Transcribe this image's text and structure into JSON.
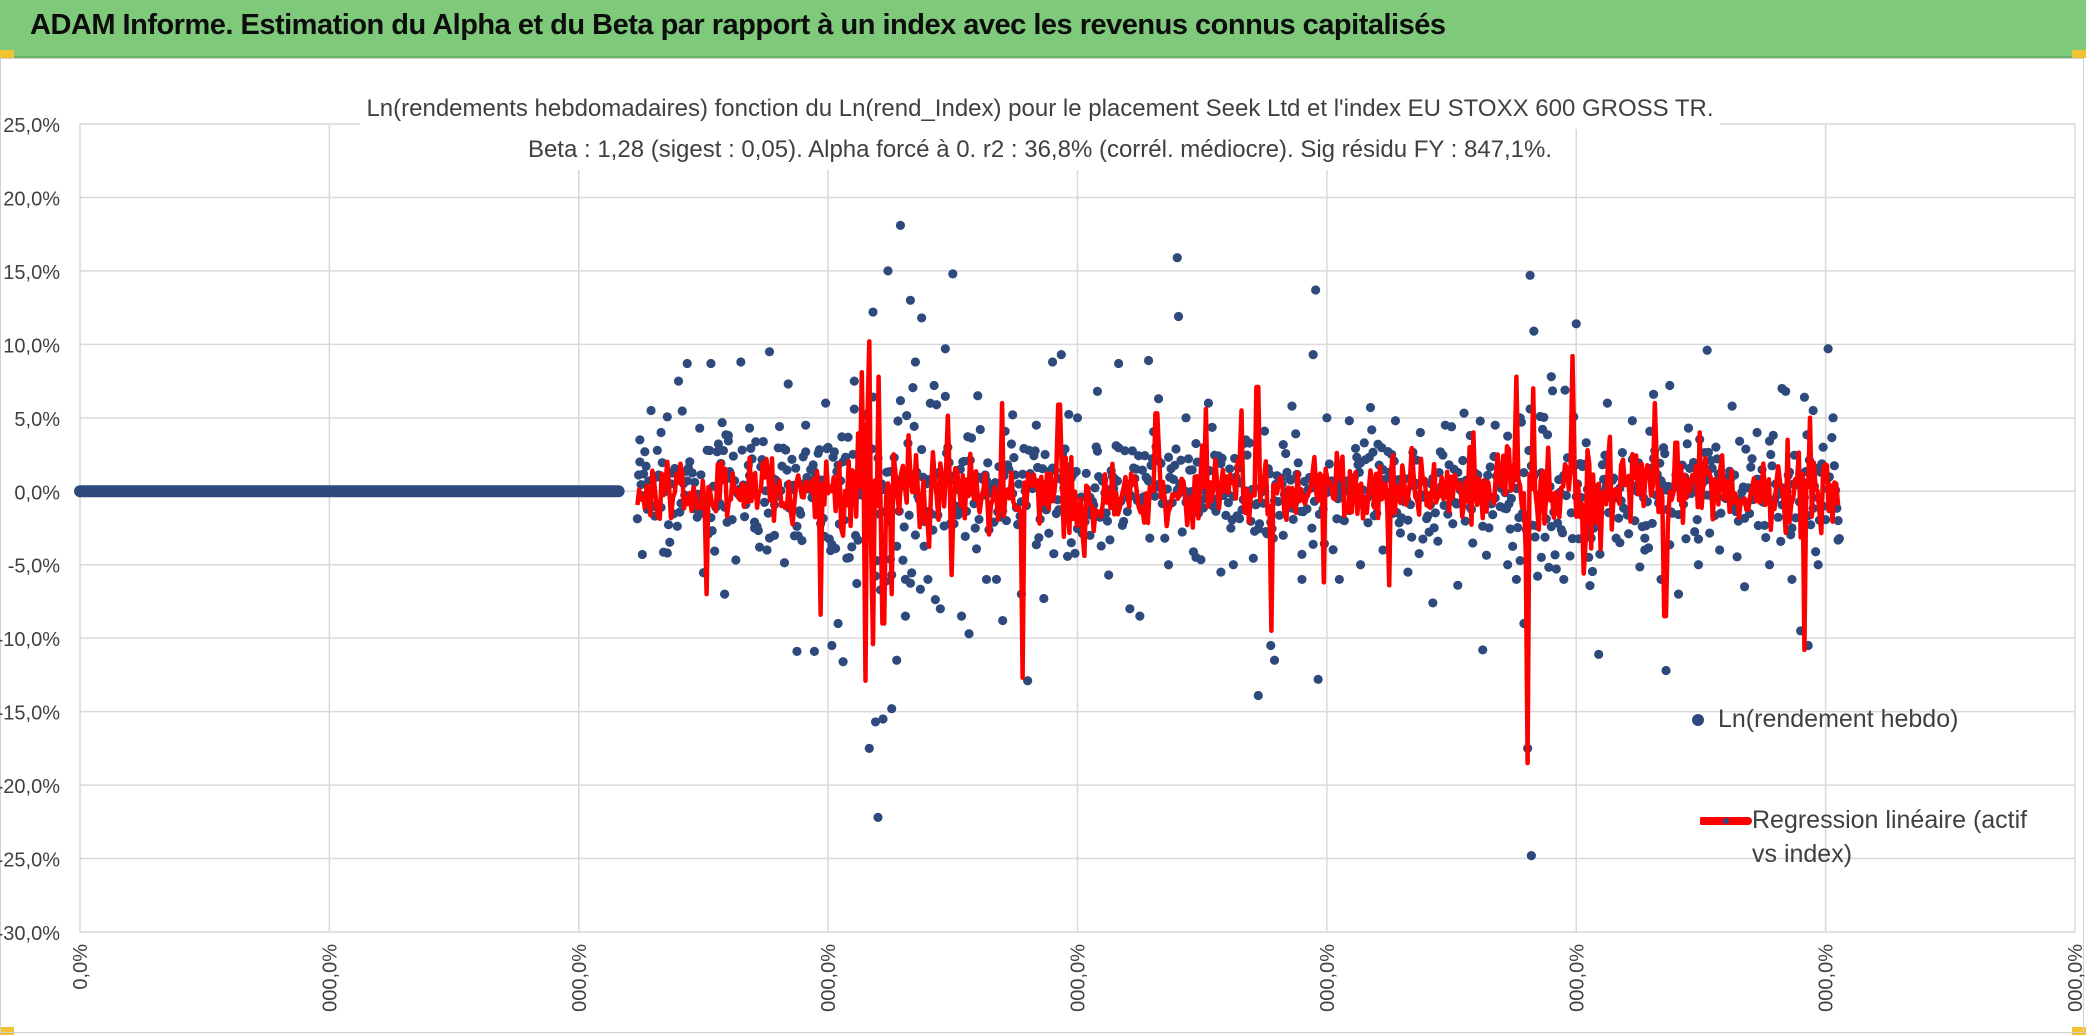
{
  "header": {
    "title": "ADAM Informe. Estimation du Alpha et du Beta par rapport à un index avec les revenus connus capitalisés"
  },
  "colors": {
    "banner": "#7ec97a",
    "points": "#2e4a7d",
    "regression": "#ff0000",
    "grid": "#d9d9d9",
    "text": "#404040"
  },
  "chart_data": {
    "type": "scatter",
    "title_line1": "Ln(rendements hebdomadaires) fonction du Ln(rend_Index) pour le placement Seek Ltd et l'index EU STOXX 600 GROSS TR.",
    "title_line2": "Beta : 1,28 (sigest : 0,05). Alpha forcé à 0. r2 : 36,8% (corrél. médiocre). Sig résidu FY : 847,1%.",
    "ylim": [
      -30,
      25
    ],
    "y_ticks": [
      "25,0%",
      "20,0%",
      "15,0%",
      "10,0%",
      "5,0%",
      "0,0%",
      "-5,0%",
      "-10,0%",
      "-15,0%",
      "-20,0%",
      "-25,0%",
      "-30,0%"
    ],
    "x_ticks": [
      "0,0%",
      "000,0%",
      "000,0%",
      "000,0%",
      "000,0%",
      "000,0%",
      "000,0%",
      "000,0%",
      "000,0%"
    ],
    "x_range": [
      0,
      1600
    ],
    "grid": true,
    "legend_position": "right",
    "series": [
      {
        "name": "Ln(rendement hebdo)",
        "kind": "scatter",
        "zero_segment": [
          0,
          432
        ],
        "points": [
          [
            449,
            3.5
          ],
          [
            451,
            -4.3
          ],
          [
            458,
            5.5
          ],
          [
            466,
            4.0
          ],
          [
            471,
            -4.2
          ],
          [
            480,
            7.5
          ],
          [
            487,
            8.7
          ],
          [
            500,
            -1.5
          ],
          [
            506,
            8.7
          ],
          [
            517,
            -7.0
          ],
          [
            520,
            3.8
          ],
          [
            530,
            8.8
          ],
          [
            537,
            4.3
          ],
          [
            541,
            -2.5
          ],
          [
            553,
            9.5
          ],
          [
            557,
            -3.0
          ],
          [
            568,
            7.3
          ],
          [
            575,
            -10.9
          ],
          [
            582,
            4.5
          ],
          [
            589,
            -10.9
          ],
          [
            598,
            6.0
          ],
          [
            603,
            -10.5
          ],
          [
            608,
            -9.0
          ],
          [
            612,
            -11.6
          ],
          [
            621,
            7.5
          ],
          [
            633,
            -17.5
          ],
          [
            636,
            12.2
          ],
          [
            638,
            -15.7
          ],
          [
            640,
            -22.2
          ],
          [
            644,
            -15.5
          ],
          [
            648,
            15.0
          ],
          [
            651,
            -14.8
          ],
          [
            655,
            -11.5
          ],
          [
            658,
            18.1
          ],
          [
            662,
            -8.5
          ],
          [
            666,
            13.0
          ],
          [
            670,
            8.8
          ],
          [
            675,
            11.8
          ],
          [
            680,
            -6.0
          ],
          [
            685,
            7.2
          ],
          [
            690,
            -8.0
          ],
          [
            694,
            9.7
          ],
          [
            700,
            14.8
          ],
          [
            707,
            -8.5
          ],
          [
            713,
            -9.7
          ],
          [
            720,
            6.5
          ],
          [
            727,
            -6.0
          ],
          [
            735,
            -6.0
          ],
          [
            740,
            -8.8
          ],
          [
            748,
            5.2
          ],
          [
            755,
            -7.0
          ],
          [
            760,
            -12.9
          ],
          [
            767,
            4.5
          ],
          [
            773,
            -7.3
          ],
          [
            780,
            8.8
          ],
          [
            787,
            9.3
          ],
          [
            795,
            -3.5
          ],
          [
            800,
            5.0
          ],
          [
            810,
            -3.0
          ],
          [
            816,
            6.8
          ],
          [
            825,
            -5.7
          ],
          [
            833,
            8.7
          ],
          [
            842,
            -8.0
          ],
          [
            850,
            -8.5
          ],
          [
            857,
            8.9
          ],
          [
            865,
            6.3
          ],
          [
            873,
            -5.0
          ],
          [
            880,
            15.9
          ],
          [
            881,
            11.9
          ],
          [
            887,
            5.0
          ],
          [
            895,
            -4.5
          ],
          [
            905,
            6.0
          ],
          [
            915,
            -5.5
          ],
          [
            925,
            -5.0
          ],
          [
            935,
            3.5
          ],
          [
            945,
            -13.9
          ],
          [
            955,
            -10.5
          ],
          [
            958,
            -11.5
          ],
          [
            965,
            -3.0
          ],
          [
            972,
            5.8
          ],
          [
            980,
            -6.0
          ],
          [
            989,
            9.3
          ],
          [
            991,
            13.7
          ],
          [
            993,
            -12.8
          ],
          [
            1000,
            5.0
          ],
          [
            1010,
            -6.0
          ],
          [
            1018,
            4.8
          ],
          [
            1027,
            -5.0
          ],
          [
            1035,
            5.7
          ],
          [
            1045,
            -4.0
          ],
          [
            1055,
            4.8
          ],
          [
            1065,
            -5.5
          ],
          [
            1075,
            4.0
          ],
          [
            1085,
            -7.6
          ],
          [
            1095,
            4.5
          ],
          [
            1105,
            -6.4
          ],
          [
            1115,
            3.8
          ],
          [
            1125,
            -10.8
          ],
          [
            1135,
            4.5
          ],
          [
            1145,
            -5.0
          ],
          [
            1152,
            -6.0
          ],
          [
            1155,
            5.0
          ],
          [
            1158,
            -9.0
          ],
          [
            1161,
            -17.5
          ],
          [
            1163,
            14.7
          ],
          [
            1164,
            -24.8
          ],
          [
            1166,
            10.9
          ],
          [
            1172,
            -4.5
          ],
          [
            1180,
            7.8
          ],
          [
            1190,
            -6.0
          ],
          [
            1200,
            11.4
          ],
          [
            1210,
            -4.5
          ],
          [
            1218,
            -11.1
          ],
          [
            1225,
            6.0
          ],
          [
            1235,
            -3.5
          ],
          [
            1245,
            4.8
          ],
          [
            1255,
            -4.0
          ],
          [
            1262,
            6.6
          ],
          [
            1268,
            -6.0
          ],
          [
            1272,
            -12.2
          ],
          [
            1275,
            7.2
          ],
          [
            1282,
            -7.0
          ],
          [
            1290,
            4.3
          ],
          [
            1298,
            -5.0
          ],
          [
            1305,
            9.6
          ],
          [
            1315,
            -4.0
          ],
          [
            1325,
            5.8
          ],
          [
            1335,
            -6.5
          ],
          [
            1345,
            4.0
          ],
          [
            1355,
            -5.0
          ],
          [
            1365,
            7.0
          ],
          [
            1368,
            6.8
          ],
          [
            1373,
            -6.0
          ],
          [
            1380,
            -9.5
          ],
          [
            1383,
            6.4
          ],
          [
            1386,
            -10.5
          ],
          [
            1390,
            5.5
          ],
          [
            1394,
            -5.0
          ],
          [
            1398,
            3.0
          ],
          [
            1402,
            9.7
          ],
          [
            1406,
            5.0
          ],
          [
            1410,
            -2.0
          ]
        ]
      },
      {
        "name": "Regression linéaire (actif vs index)",
        "kind": "line",
        "x_start": 447,
        "x_end": 1411,
        "spikes": [
          [
            472,
            2.0
          ],
          [
            503,
            -7.0
          ],
          [
            551,
            2.2
          ],
          [
            595,
            -8.4
          ],
          [
            628,
            8.1
          ],
          [
            631,
            -12.9
          ],
          [
            634,
            10.2
          ],
          [
            637,
            -10.4
          ],
          [
            641,
            7.8
          ],
          [
            645,
            -9.0
          ],
          [
            652,
            -7.0
          ],
          [
            665,
            3.8
          ],
          [
            700,
            -5.7
          ],
          [
            740,
            6.0
          ],
          [
            757,
            -12.7
          ],
          [
            786,
            5.9
          ],
          [
            806,
            -4.4
          ],
          [
            864,
            5.3
          ],
          [
            904,
            5.6
          ],
          [
            932,
            5.5
          ],
          [
            945,
            7.1
          ],
          [
            956,
            -9.5
          ],
          [
            998,
            -6.2
          ],
          [
            1051,
            -6.4
          ],
          [
            1118,
            4.0
          ],
          [
            1153,
            7.8
          ],
          [
            1162,
            -18.5
          ],
          [
            1166,
            7.0
          ],
          [
            1171,
            -2.6
          ],
          [
            1198,
            9.2
          ],
          [
            1207,
            -5.6
          ],
          [
            1228,
            3.7
          ],
          [
            1264,
            6.0
          ],
          [
            1272,
            -8.5
          ],
          [
            1281,
            3.3
          ],
          [
            1300,
            4.0
          ],
          [
            1370,
            3.5
          ],
          [
            1384,
            -10.8
          ],
          [
            1388,
            5.0
          ]
        ]
      }
    ]
  }
}
